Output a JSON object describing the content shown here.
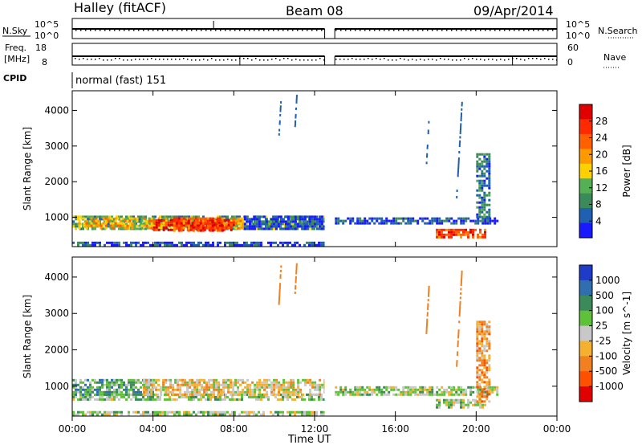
{
  "header": {
    "title": "Halley (fitACF)",
    "beam": "Beam 08",
    "date": "09/Apr/2014"
  },
  "status_panels": {
    "nsky_label": "N.Sky",
    "nsearch_label": "N.Search",
    "freq_label_1": "Freq.",
    "freq_label_2": "[MHz]",
    "nave_label": "Nave",
    "cpid_label": "CPID",
    "cpid_value": "normal (fast) 151",
    "noise_ticks": [
      "10^5",
      "10^0"
    ],
    "noise_ticks_right": [
      "10^5",
      "10^0"
    ],
    "freq_ticks": [
      "18",
      "8"
    ],
    "nave_ticks": [
      "60",
      "0"
    ]
  },
  "colors": {
    "power_scale": [
      "#1a1aff",
      "#2060b0",
      "#3a8a5a",
      "#55b055",
      "#ffd000",
      "#ff9900",
      "#ff6000",
      "#ff2a00",
      "#e00000"
    ],
    "velocity_scale": [
      "#1e3cc8",
      "#2f6fb0",
      "#3a8a5a",
      "#5fc03a",
      "#c8c8c8",
      "#f5b030",
      "#f08020",
      "#ff5000",
      "#e00000"
    ]
  },
  "chart_data": [
    {
      "type": "heatmap",
      "name": "power",
      "xlabel": "Time UT",
      "ylabel": "Slant Range [km]",
      "colorbar_label": "Power [dB]",
      "colorbar_ticks": [
        "28",
        "24",
        "20",
        "16",
        "12",
        "8",
        "4"
      ],
      "xlim": [
        0,
        24
      ],
      "ylim": [
        180,
        4550
      ],
      "y_ticks": [
        1000,
        2000,
        3000,
        4000
      ],
      "x_tick_labels": [
        "00:00",
        "04:00",
        "08:00",
        "12:00",
        "16:00",
        "20:00",
        "00:00"
      ],
      "x_ticks_hours": [
        0,
        4,
        8,
        12,
        16,
        20,
        24
      ],
      "data_gap_hours": [
        12.5,
        13.0
      ],
      "regions": [
        {
          "t0": 0.0,
          "t1": 12.5,
          "r_low": 650,
          "r_high": 1050,
          "level": 3
        },
        {
          "t0": 0.3,
          "t1": 8.5,
          "r_low": 700,
          "r_high": 1000,
          "level": 5
        },
        {
          "t0": 4.0,
          "t1": 8.0,
          "r_low": 650,
          "r_high": 950,
          "level": 8
        },
        {
          "t0": 5.0,
          "t1": 7.5,
          "r_low": 600,
          "r_high": 1000,
          "level": 7
        },
        {
          "t0": 8.5,
          "t1": 12.5,
          "r_low": 700,
          "r_high": 1050,
          "level": 1
        },
        {
          "t0": 13.0,
          "t1": 21.0,
          "r_low": 800,
          "r_high": 1000,
          "level": 1
        },
        {
          "t0": 18.0,
          "t1": 20.5,
          "r_low": 420,
          "r_high": 680,
          "level": 7
        },
        {
          "t0": 20.0,
          "t1": 20.6,
          "r_low": 1000,
          "r_high": 2800,
          "level": 2
        },
        {
          "t0": 0.0,
          "t1": 12.5,
          "r_low": 250,
          "r_high": 320,
          "level": 1
        }
      ]
    },
    {
      "type": "heatmap",
      "name": "velocity",
      "xlabel": "Time UT",
      "ylabel": "Slant Range [km]",
      "colorbar_label": "Velocity [m s^-1]",
      "colorbar_ticks": [
        "1000",
        "500",
        "100",
        "25",
        "-25",
        "-100",
        "-500",
        "-1000"
      ],
      "xlim": [
        0,
        24
      ],
      "ylim": [
        180,
        4550
      ],
      "y_ticks": [
        1000,
        2000,
        3000,
        4000
      ],
      "x_tick_labels": [
        "00:00",
        "04:00",
        "08:00",
        "12:00",
        "16:00",
        "20:00",
        "00:00"
      ],
      "x_ticks_hours": [
        0,
        4,
        8,
        12,
        16,
        20,
        24
      ],
      "data_gap_hours": [
        12.5,
        13.0
      ],
      "regions": [
        {
          "t0": 0.0,
          "t1": 12.5,
          "r_low": 650,
          "r_high": 800,
          "level": 4
        },
        {
          "t0": 0.0,
          "t1": 4.0,
          "r_low": 800,
          "r_high": 1200,
          "level": 3
        },
        {
          "t0": 3.5,
          "t1": 12.5,
          "r_low": 800,
          "r_high": 1200,
          "level": 5
        },
        {
          "t0": 13.0,
          "t1": 21.0,
          "r_low": 800,
          "r_high": 1000,
          "level": 4
        },
        {
          "t0": 18.0,
          "t1": 20.5,
          "r_low": 420,
          "r_high": 650,
          "level": 4
        },
        {
          "t0": 20.0,
          "t1": 20.6,
          "r_low": 600,
          "r_high": 2800,
          "level": 6
        },
        {
          "t0": 0.0,
          "t1": 12.5,
          "r_low": 250,
          "r_high": 320,
          "level": 4
        }
      ]
    }
  ]
}
